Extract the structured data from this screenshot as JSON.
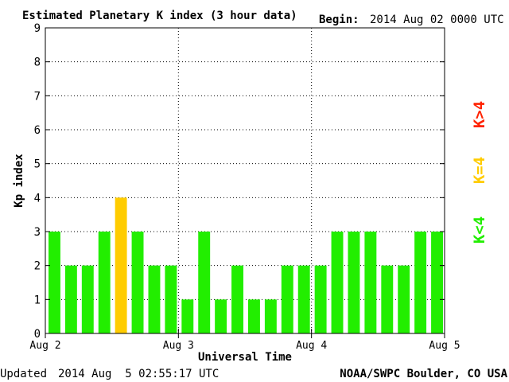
{
  "chart_data": {
    "type": "bar",
    "title": "Estimated Planetary K index (3 hour data)",
    "begin_label": "Begin:",
    "begin_value": "2014 Aug 02 0000 UTC",
    "ylabel": "Kp index",
    "xlabel": "Universal Time",
    "ylim": [
      0,
      9
    ],
    "yticks": [
      "0",
      "1",
      "2",
      "3",
      "4",
      "5",
      "6",
      "7",
      "8",
      "9"
    ],
    "xticks": [
      "Aug 2",
      "Aug 3",
      "Aug 4",
      "Aug 5"
    ],
    "grid": true,
    "interval_hours": 3,
    "values": [
      3,
      2,
      2,
      3,
      4,
      3,
      2,
      2,
      1,
      3,
      1,
      2,
      1,
      1,
      2,
      2,
      2,
      3,
      3,
      3,
      2,
      2,
      3,
      3
    ],
    "legend": {
      "placement": "right",
      "items": [
        {
          "label": "K<4",
          "color": "#22ee00"
        },
        {
          "label": "K=4",
          "color": "#ffcc00"
        },
        {
          "label": "K>4",
          "color": "#ff2200"
        }
      ]
    }
  },
  "footer": {
    "updated_label": "Updated",
    "updated_value": "2014 Aug  5 02:55:17 UTC",
    "source": "NOAA/SWPC Boulder, CO USA"
  }
}
